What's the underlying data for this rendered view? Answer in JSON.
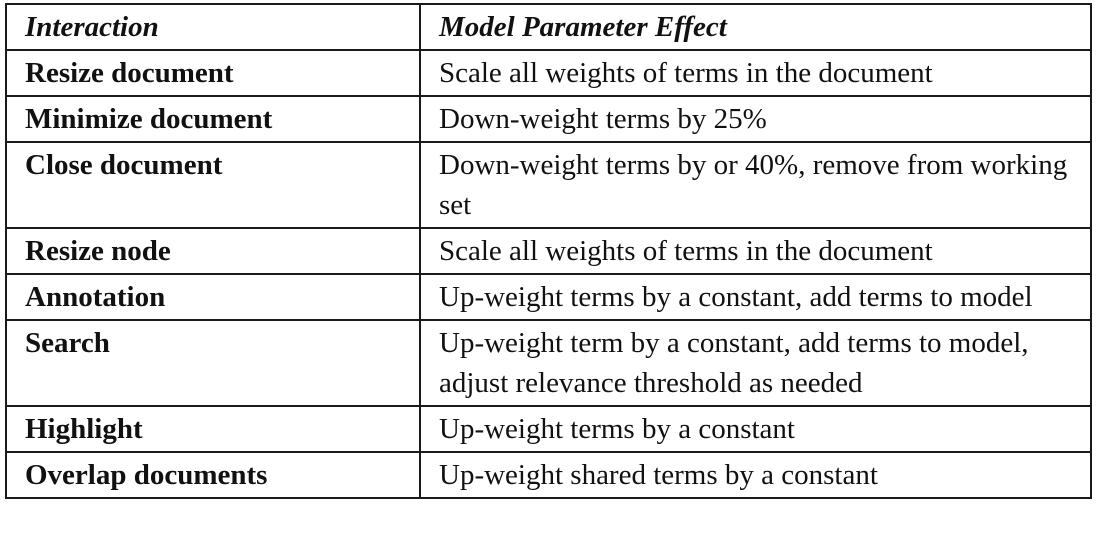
{
  "headers": {
    "interaction": "Interaction",
    "effect": "Model Parameter Effect"
  },
  "rows": [
    {
      "interaction": "Resize document",
      "effect": "Scale all weights of terms in the document"
    },
    {
      "interaction": "Minimize document",
      "effect": "Down-weight terms by 25%"
    },
    {
      "interaction": "Close document",
      "effect": "Down-weight terms by or 40%, remove from working set"
    },
    {
      "interaction": "Resize node",
      "effect": "Scale all weights of terms in the document"
    },
    {
      "interaction": "Annotation",
      "effect": "Up-weight terms by a constant, add terms to model"
    },
    {
      "interaction": "Search",
      "effect": "Up-weight term by a constant, add terms to model, adjust relevance threshold as needed"
    },
    {
      "interaction": "Highlight",
      "effect": "Up-weight terms by a constant"
    },
    {
      "interaction": "Overlap documents",
      "effect": "Up-weight shared terms by a constant"
    }
  ]
}
